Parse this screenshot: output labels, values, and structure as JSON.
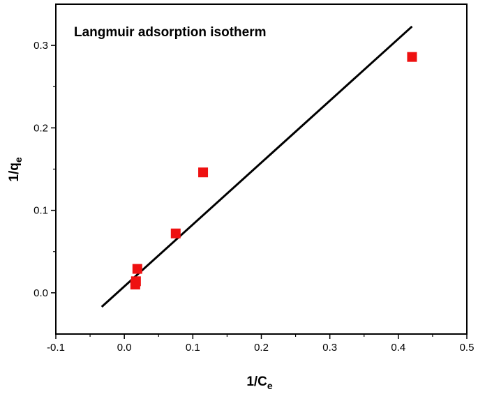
{
  "chart_data": {
    "type": "scatter",
    "title": "Langmuir adsorption isotherm",
    "xlabel": {
      "main": "1/C",
      "sub": "e"
    },
    "ylabel": {
      "main": "1/q",
      "sub": "e"
    },
    "xlim": [
      -0.1,
      0.5
    ],
    "ylim": [
      -0.05,
      0.35
    ],
    "x_ticks": [
      -0.1,
      0.0,
      0.1,
      0.2,
      0.3,
      0.4,
      0.5
    ],
    "x_tick_labels": [
      "-0.1",
      "0.0",
      "0.1",
      "0.2",
      "0.3",
      "0.4",
      "0.5"
    ],
    "y_ticks": [
      0.0,
      0.1,
      0.2,
      0.3
    ],
    "y_tick_labels": [
      "0.0",
      "0.1",
      "0.2",
      "0.3"
    ],
    "grid": false,
    "series": [
      {
        "kind": "scatter",
        "marker": "square",
        "color": "#ee1111",
        "points": [
          {
            "x": 0.016,
            "y": 0.01
          },
          {
            "x": 0.017,
            "y": 0.014
          },
          {
            "x": 0.019,
            "y": 0.029
          },
          {
            "x": 0.075,
            "y": 0.072
          },
          {
            "x": 0.115,
            "y": 0.146
          },
          {
            "x": 0.42,
            "y": 0.286
          }
        ]
      },
      {
        "kind": "line",
        "color": "#000000",
        "points": [
          {
            "x": -0.033,
            "y": -0.017
          },
          {
            "x": 0.42,
            "y": 0.323
          }
        ]
      }
    ]
  }
}
